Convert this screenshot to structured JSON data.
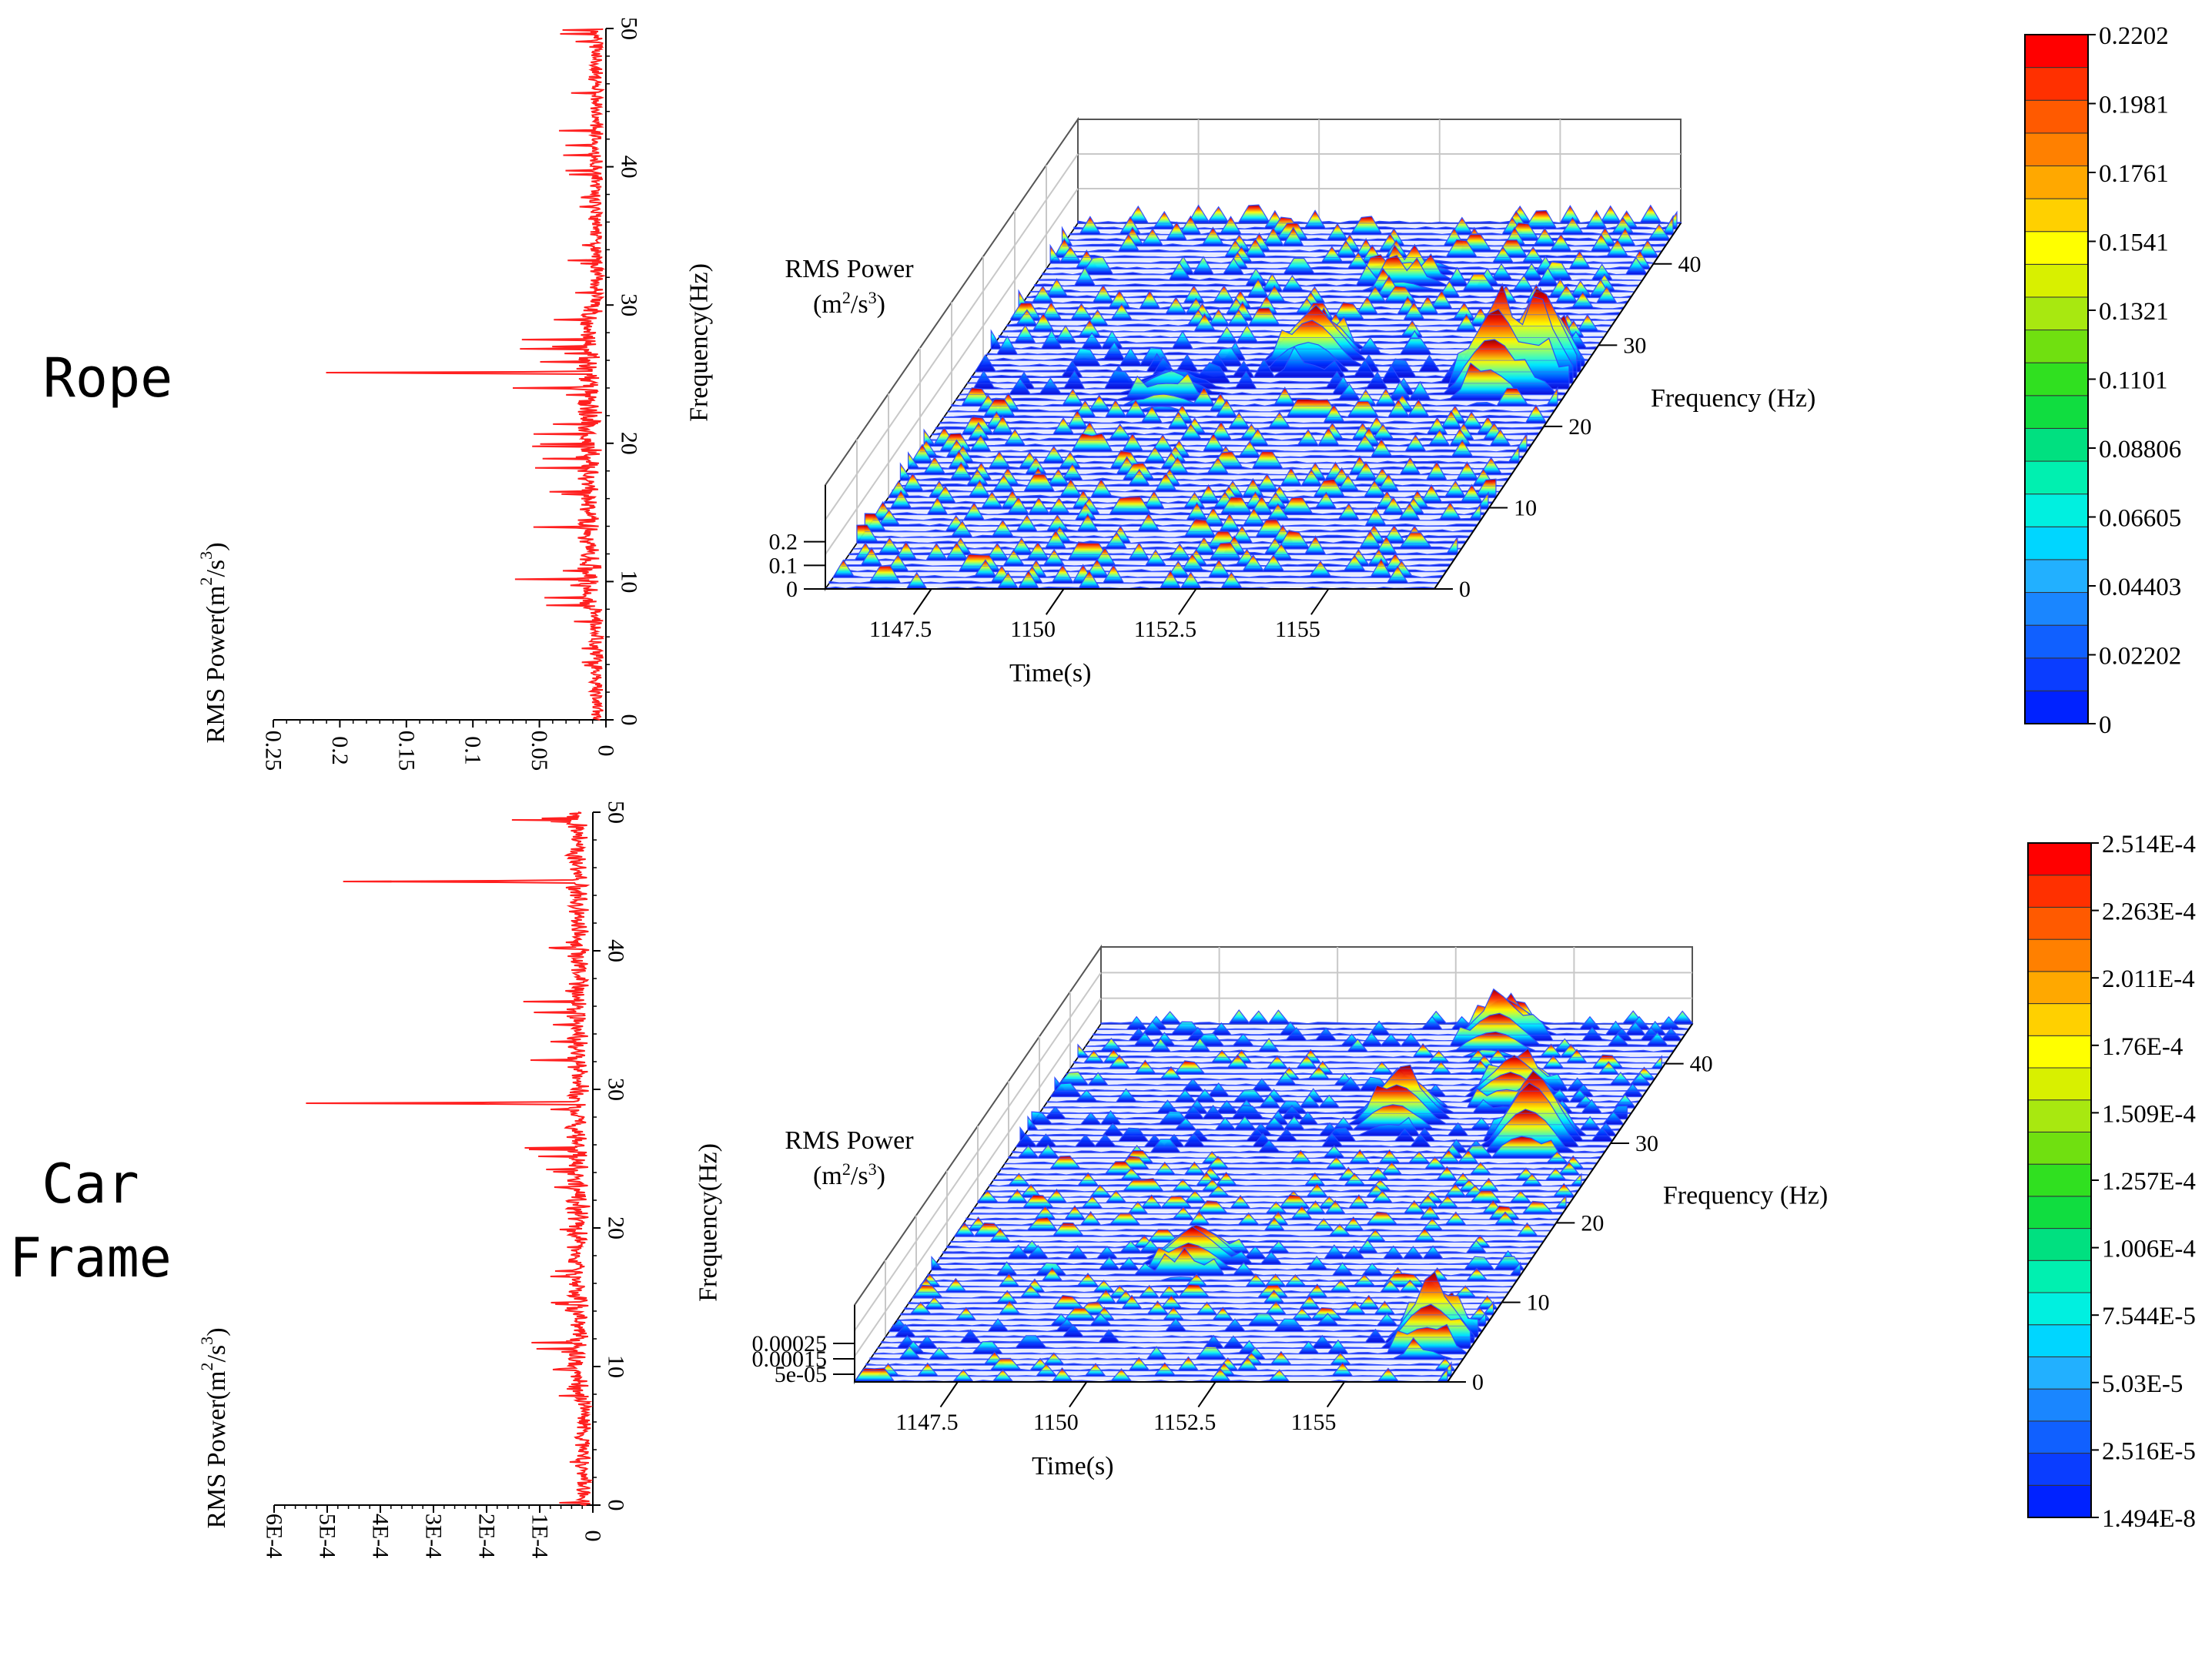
{
  "panels": [
    {
      "id": "rope",
      "label": "Rope",
      "spectrum": {
        "xlabel": "RMS Power(m²/s³)",
        "x_ticks": [
          "0.25",
          "0.2",
          "0.15",
          "0.1",
          "0.05",
          "0"
        ],
        "y_ticks": [
          "0",
          "10",
          "20",
          "30",
          "40",
          "50"
        ],
        "xlim": [
          0,
          0.25
        ],
        "ylim": [
          0,
          50
        ],
        "line_color": "#ff2020"
      },
      "surface": {
        "zlabel": "RMS Power (m²/s³)",
        "ylabel_side": "Frequency(Hz)",
        "ylabel_right": "Frequency (Hz)",
        "xlabel": "Time(s)",
        "x_ticks": [
          "1147.5",
          "1150",
          "1152.5",
          "1155"
        ],
        "y_ticks": [
          "0",
          "10",
          "20",
          "30",
          "40"
        ],
        "z_ticks": [
          "0",
          "0.1",
          "0.2"
        ]
      },
      "colorbar": {
        "labels": [
          "0",
          "0.02202",
          "0.04403",
          "0.06605",
          "0.08806",
          "0.1101",
          "0.1321",
          "0.1541",
          "0.1761",
          "0.1981",
          "0.2202"
        ]
      }
    },
    {
      "id": "car-frame",
      "label": "Car\nFrame",
      "spectrum": {
        "xlabel": "RMS Power(m²/s³)",
        "x_ticks": [
          "6E-4",
          "5E-4",
          "4E-4",
          "3E-4",
          "2E-4",
          "1E-4",
          "0"
        ],
        "y_ticks": [
          "0",
          "10",
          "20",
          "30",
          "40",
          "50"
        ],
        "xlim": [
          0,
          0.0006
        ],
        "ylim": [
          0,
          50
        ],
        "line_color": "#ff2020"
      },
      "surface": {
        "zlabel": "RMS Power (m²/s³)",
        "ylabel_side": "Frequency(Hz)",
        "ylabel_right": "Frequency (Hz)",
        "xlabel": "Time(s)",
        "x_ticks": [
          "1147.5",
          "1150",
          "1152.5",
          "1155"
        ],
        "y_ticks": [
          "0",
          "10",
          "20",
          "30",
          "40"
        ],
        "z_ticks": [
          "5e-05",
          "0.00015",
          "0.00025"
        ]
      },
      "colorbar": {
        "labels": [
          "1.494E-8",
          "2.516E-5",
          "5.03E-5",
          "7.544E-5",
          "1.006E-4",
          "1.257E-4",
          "1.509E-4",
          "1.76E-4",
          "2.011E-4",
          "2.263E-4",
          "2.514E-4"
        ]
      }
    }
  ],
  "chart_data": [
    {
      "type": "line",
      "panel": "Rope",
      "orientation": "horizontal spectrum (power vs frequency)",
      "xlabel": "RMS Power(m²/s³)",
      "ylabel": "",
      "xlim": [
        0,
        0.25
      ],
      "ylim": [
        0,
        50
      ],
      "series": [
        {
          "peaks": [
            {
              "frequency": 25.1,
              "power": 0.24
            },
            {
              "frequency": 37.8,
              "power": 0.025
            },
            {
              "frequency": 16.0,
              "power": 0.015
            },
            {
              "frequency": 24.0,
              "power": 0.07
            },
            {
              "frequency": 23.5,
              "power": 0.03
            }
          ]
        }
      ]
    },
    {
      "type": "surface3d",
      "panel": "Rope",
      "xlabel": "Time(s)",
      "ylabel": "Frequency (Hz)",
      "zlabel": "RMS Power (m²/s³)",
      "xlim": [
        1145.5,
        1157
      ],
      "ylim": [
        0,
        45
      ],
      "zlim": [
        0,
        0.22
      ],
      "peaks": [
        {
          "time": 1155.6,
          "frequency": 25,
          "power": 0.2
        },
        {
          "time": 1156.3,
          "frequency": 26,
          "power": 0.2
        },
        {
          "time": 1151.8,
          "frequency": 28,
          "power": 0.12
        },
        {
          "time": 1149.5,
          "frequency": 24,
          "power": 0.05
        },
        {
          "time": 1152.5,
          "frequency": 38,
          "power": 0.04
        }
      ]
    },
    {
      "type": "line",
      "panel": "Car Frame",
      "orientation": "horizontal spectrum (power vs frequency)",
      "xlabel": "RMS Power(m²/s³)",
      "ylabel": "",
      "xlim": [
        0,
        0.0006
      ],
      "ylim": [
        0,
        50
      ],
      "series": [
        {
          "peaks": [
            {
              "frequency": 45.0,
              "power": 0.00047
            },
            {
              "frequency": 29.0,
              "power": 0.00054
            },
            {
              "frequency": 40.2,
              "power": 0.00011
            },
            {
              "frequency": 14.6,
              "power": 9e-05
            },
            {
              "frequency": 9.8,
              "power": 0.0001
            }
          ]
        }
      ]
    },
    {
      "type": "surface3d",
      "panel": "Car Frame",
      "xlabel": "Time(s)",
      "ylabel": "Frequency (Hz)",
      "zlabel": "RMS Power (m²/s³)",
      "xlim": [
        1145.5,
        1157
      ],
      "ylim": [
        0,
        45
      ],
      "zlim": [
        0,
        0.00025
      ],
      "peaks": [
        {
          "time": 1155.5,
          "frequency": 30,
          "power": 0.00025
        },
        {
          "time": 1152.6,
          "frequency": 33,
          "power": 0.00017
        },
        {
          "time": 1153.5,
          "frequency": 43,
          "power": 0.00015
        },
        {
          "time": 1154.5,
          "frequency": 36,
          "power": 0.00014
        },
        {
          "time": 1150.5,
          "frequency": 15,
          "power": 0.00013
        },
        {
          "time": 1156.2,
          "frequency": 5,
          "power": 0.0002
        }
      ]
    }
  ]
}
